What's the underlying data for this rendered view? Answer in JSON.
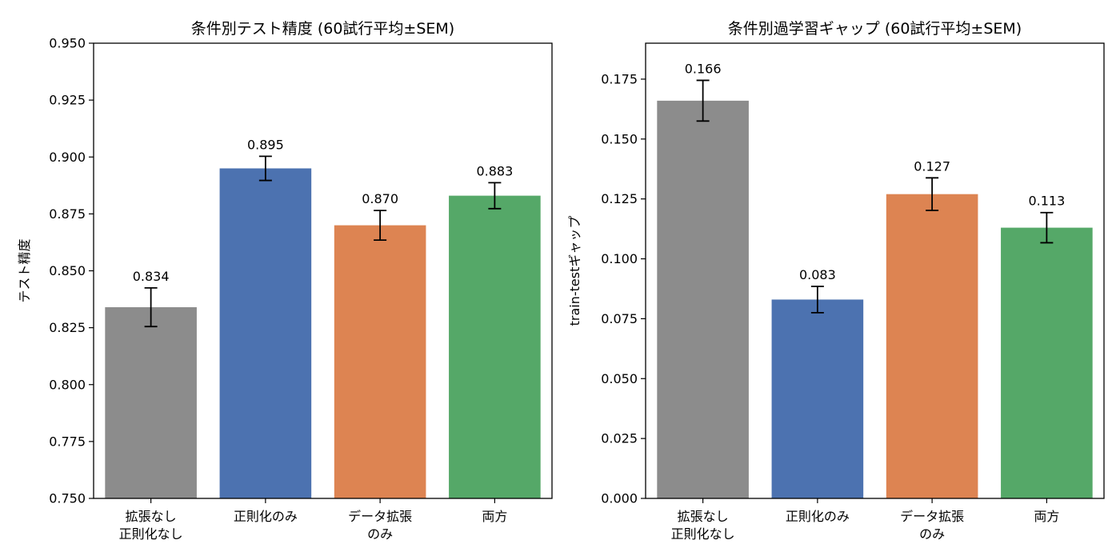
{
  "chart_data": [
    {
      "type": "bar",
      "title": "条件別テスト精度 (60試行平均±SEM)",
      "xlabel": "",
      "ylabel": "テスト精度",
      "categories": [
        [
          "拡張なし",
          "正則化なし"
        ],
        [
          "正則化のみ"
        ],
        [
          "データ拡張",
          "のみ"
        ],
        [
          "両方"
        ]
      ],
      "values": [
        0.834,
        0.895,
        0.87,
        0.883
      ],
      "errors": [
        0.0085,
        0.0053,
        0.0065,
        0.0057
      ],
      "value_labels": [
        "0.834",
        "0.895",
        "0.870",
        "0.883"
      ],
      "colors": [
        "#8c8c8c",
        "#4c72b0",
        "#dd8452",
        "#55a868"
      ],
      "ylim": [
        0.75,
        0.95
      ],
      "yticks": [
        0.75,
        0.775,
        0.8,
        0.825,
        0.85,
        0.875,
        0.9,
        0.925,
        0.95
      ],
      "ytick_labels": [
        "0.750",
        "0.775",
        "0.800",
        "0.825",
        "0.850",
        "0.875",
        "0.900",
        "0.925",
        "0.950"
      ],
      "grid": false,
      "legend": "none"
    },
    {
      "type": "bar",
      "title": "条件別過学習ギャップ (60試行平均±SEM)",
      "xlabel": "",
      "ylabel": "train-testギャップ",
      "categories": [
        [
          "拡張なし",
          "正則化なし"
        ],
        [
          "正則化のみ"
        ],
        [
          "データ拡張",
          "のみ"
        ],
        [
          "両方"
        ]
      ],
      "values": [
        0.166,
        0.083,
        0.127,
        0.113
      ],
      "errors": [
        0.0085,
        0.0055,
        0.0068,
        0.0063
      ],
      "value_labels": [
        "0.166",
        "0.083",
        "0.127",
        "0.113"
      ],
      "colors": [
        "#8c8c8c",
        "#4c72b0",
        "#dd8452",
        "#55a868"
      ],
      "ylim": [
        0.0,
        0.19
      ],
      "yticks": [
        0.0,
        0.025,
        0.05,
        0.075,
        0.1,
        0.125,
        0.15,
        0.175
      ],
      "ytick_labels": [
        "0.000",
        "0.025",
        "0.050",
        "0.075",
        "0.100",
        "0.125",
        "0.150",
        "0.175"
      ],
      "grid": false,
      "legend": "none"
    }
  ]
}
